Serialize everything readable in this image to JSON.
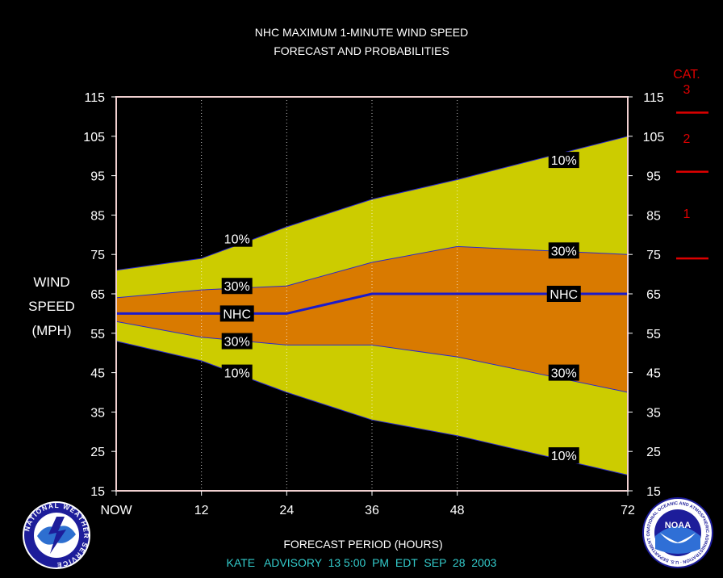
{
  "chart_data": {
    "type": "area",
    "title": "NHC MAXIMUM 1-MINUTE WIND SPEED",
    "subtitle": "FORECAST AND PROBABILITIES",
    "ylabel_lines": [
      "WIND",
      "SPEED",
      "(MPH)"
    ],
    "xlabel": "FORECAST PERIOD (HOURS)",
    "footer": "KATE   ADVISORY  13 5:00  PM  EDT  SEP  28  2003",
    "ylim": [
      15,
      115
    ],
    "xlim": [
      0,
      72
    ],
    "x_ticks": [
      {
        "x": 0,
        "label": "NOW"
      },
      {
        "x": 12,
        "label": "12"
      },
      {
        "x": 24,
        "label": "24"
      },
      {
        "x": 36,
        "label": "36"
      },
      {
        "x": 48,
        "label": "48"
      },
      {
        "x": 72,
        "label": "72"
      }
    ],
    "y_ticks": [
      15,
      25,
      35,
      45,
      55,
      65,
      75,
      85,
      95,
      105,
      115
    ],
    "y_tick_labels": [
      "15",
      "25",
      "35",
      "45",
      "55",
      "65",
      "75",
      "85",
      "95",
      "105",
      "115"
    ],
    "x": [
      0,
      12,
      24,
      36,
      48,
      72
    ],
    "upper_10": [
      71,
      74,
      82,
      89,
      94,
      105
    ],
    "upper_30": [
      64,
      66,
      67,
      73,
      77,
      75
    ],
    "nhc": [
      60,
      60,
      60,
      65,
      65,
      65
    ],
    "lower_30": [
      58,
      54,
      52,
      52,
      49,
      40
    ],
    "lower_10": [
      53,
      48,
      40,
      33,
      29,
      19
    ],
    "colors": {
      "outer_band": "#cccc00",
      "inner_band": "#d97a00",
      "nhc_line": "#1a1acc",
      "edge": "#2a2acc",
      "frame": "#f0d0d0",
      "category": "#dd0000",
      "footer": "#33cccc"
    },
    "labels": {
      "pct10": "10%",
      "pct30": "30%",
      "nhc": "NHC",
      "ul10": [
        17,
        79
      ],
      "ul30": [
        17,
        67
      ],
      "unhc": [
        17,
        60
      ],
      "ll30": [
        17,
        53
      ],
      "ll10": [
        17,
        45
      ],
      "rl10": [
        63,
        99
      ],
      "rl30": [
        63,
        76
      ],
      "rnhc": [
        63,
        65
      ],
      "rll30": [
        63,
        45
      ],
      "rll10": [
        63,
        24
      ]
    },
    "category_scale": {
      "title": "CAT.",
      "categories": [
        "3",
        "2",
        "1"
      ]
    }
  },
  "logos": {
    "nws_text": "NATIONAL WEATHER SERVICE",
    "noaa_label": "NOAA",
    "noaa_ring": "NATIONAL OCEANIC AND ATMOSPHERIC ADMINISTRATION · U.S. DEPARTMENT OF COMMERCE"
  }
}
